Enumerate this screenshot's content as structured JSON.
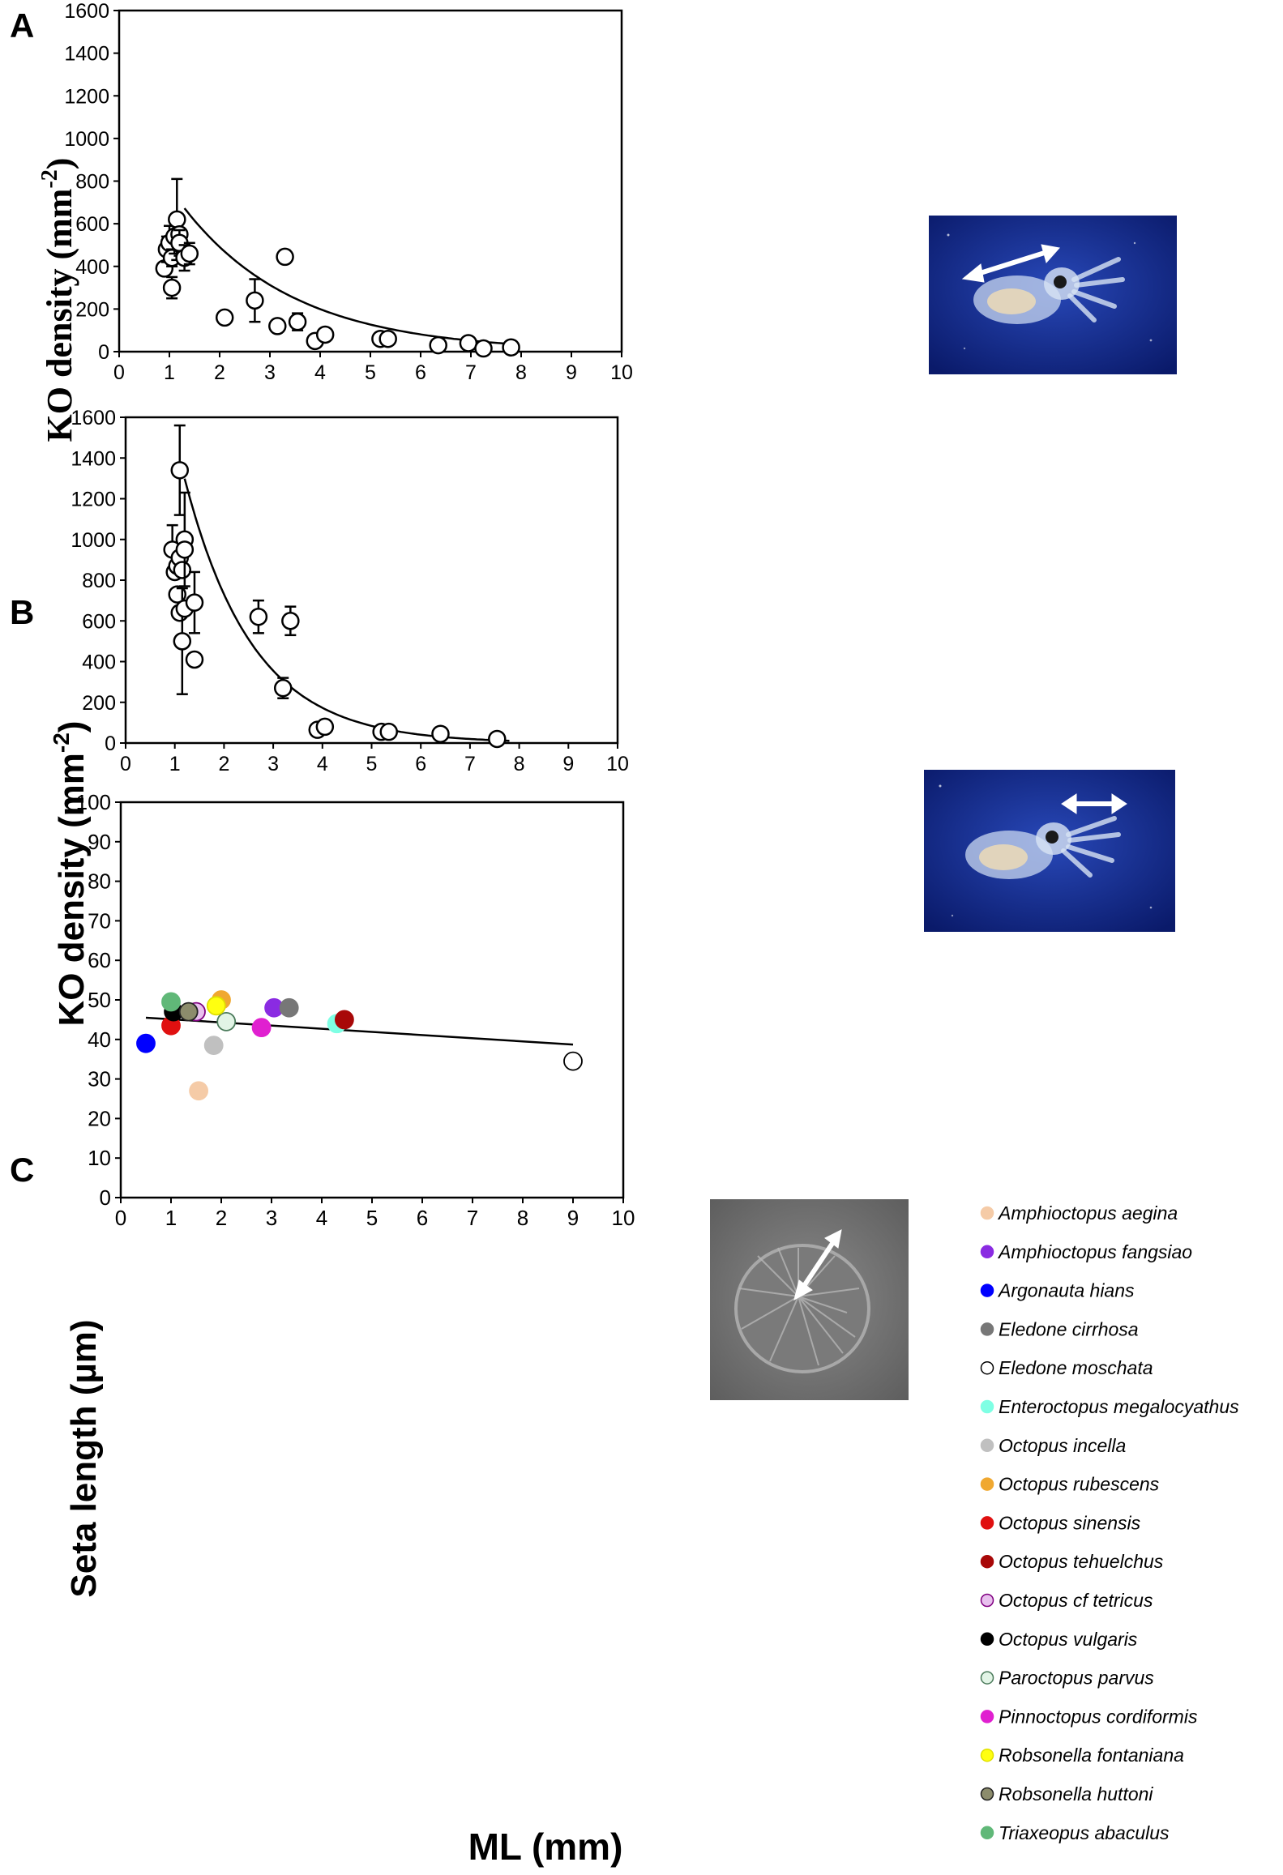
{
  "chart_data": [
    {
      "type": "scatter",
      "panel_label": "A",
      "xlabel": "",
      "ylabel": "KO density  (mm-2)",
      "ylabel_main": "KO density  (mm",
      "ylabel_sup": "-2",
      "ylabel_tail": ")",
      "xlim": [
        0,
        10
      ],
      "ylim": [
        0,
        1600
      ],
      "x_ticks": [
        "0",
        "1",
        "2",
        "3",
        "4",
        "5",
        "6",
        "7",
        "8",
        "9",
        "10"
      ],
      "y_ticks": [
        "0",
        "200",
        "400",
        "600",
        "800",
        "1000",
        "1200",
        "1400",
        "1600"
      ],
      "points": [
        {
          "x": 0.9,
          "y": 390,
          "err": 0
        },
        {
          "x": 0.95,
          "y": 480,
          "err": 60
        },
        {
          "x": 1.0,
          "y": 510,
          "err": 80
        },
        {
          "x": 1.05,
          "y": 440,
          "err": 40
        },
        {
          "x": 1.05,
          "y": 300,
          "err": 50
        },
        {
          "x": 1.1,
          "y": 540,
          "err": 80
        },
        {
          "x": 1.15,
          "y": 620,
          "err": 190
        },
        {
          "x": 1.2,
          "y": 550,
          "err": 0
        },
        {
          "x": 1.2,
          "y": 510,
          "err": 60
        },
        {
          "x": 1.3,
          "y": 440,
          "err": 60
        },
        {
          "x": 1.4,
          "y": 460,
          "err": 50
        },
        {
          "x": 2.1,
          "y": 160,
          "err": 0
        },
        {
          "x": 2.7,
          "y": 240,
          "err": 100
        },
        {
          "x": 3.15,
          "y": 120,
          "err": 0
        },
        {
          "x": 3.3,
          "y": 445,
          "err": 30
        },
        {
          "x": 3.55,
          "y": 140,
          "err": 40
        },
        {
          "x": 3.9,
          "y": 50,
          "err": 0
        },
        {
          "x": 4.1,
          "y": 80,
          "err": 0
        },
        {
          "x": 5.2,
          "y": 60,
          "err": 20
        },
        {
          "x": 5.35,
          "y": 60,
          "err": 0
        },
        {
          "x": 6.35,
          "y": 30,
          "err": 0
        },
        {
          "x": 6.95,
          "y": 40,
          "err": 0
        },
        {
          "x": 7.25,
          "y": 15,
          "err": 0
        },
        {
          "x": 7.8,
          "y": 20,
          "err": 0
        }
      ],
      "fit": {
        "type": "exponential",
        "x_range": [
          1.3,
          7.8
        ],
        "a": 770,
        "b": 0.45
      },
      "inset_description": "squid paralarva photo, arrow along mantle"
    },
    {
      "type": "scatter",
      "panel_label": "B",
      "xlabel": "",
      "ylabel": "KO density  (mm-2)",
      "ylabel_main": "KO density  (mm",
      "ylabel_sup": "-2",
      "ylabel_tail": ")",
      "xlim": [
        0,
        10
      ],
      "ylim": [
        0,
        1600
      ],
      "x_ticks": [
        "0",
        "1",
        "2",
        "3",
        "4",
        "5",
        "6",
        "7",
        "8",
        "9",
        "10"
      ],
      "y_ticks": [
        "0",
        "200",
        "400",
        "600",
        "800",
        "1000",
        "1200",
        "1400",
        "1600"
      ],
      "points": [
        {
          "x": 0.95,
          "y": 950,
          "err": 120
        },
        {
          "x": 1.0,
          "y": 840,
          "err": 0
        },
        {
          "x": 1.05,
          "y": 870,
          "err": 0
        },
        {
          "x": 1.05,
          "y": 730,
          "err": 0
        },
        {
          "x": 1.1,
          "y": 1340,
          "err": 220
        },
        {
          "x": 1.1,
          "y": 910,
          "err": 0
        },
        {
          "x": 1.1,
          "y": 640,
          "err": 0
        },
        {
          "x": 1.15,
          "y": 850,
          "err": 0
        },
        {
          "x": 1.15,
          "y": 500,
          "err": 260
        },
        {
          "x": 1.2,
          "y": 1000,
          "err": 230
        },
        {
          "x": 1.2,
          "y": 950,
          "err": 0
        },
        {
          "x": 1.2,
          "y": 660,
          "err": 0
        },
        {
          "x": 1.4,
          "y": 690,
          "err": 150
        },
        {
          "x": 1.4,
          "y": 410,
          "err": 0
        },
        {
          "x": 2.7,
          "y": 620,
          "err": 80
        },
        {
          "x": 3.2,
          "y": 270,
          "err": 50
        },
        {
          "x": 3.35,
          "y": 600,
          "err": 70
        },
        {
          "x": 3.9,
          "y": 65,
          "err": 0
        },
        {
          "x": 4.05,
          "y": 80,
          "err": 0
        },
        {
          "x": 5.2,
          "y": 55,
          "err": 0
        },
        {
          "x": 5.35,
          "y": 55,
          "err": 0
        },
        {
          "x": 6.4,
          "y": 45,
          "err": 0
        },
        {
          "x": 7.55,
          "y": 20,
          "err": 0
        }
      ],
      "fit": {
        "type": "exponential",
        "x_range": [
          1.2,
          7.8
        ],
        "a": 1500,
        "b": 0.72
      },
      "inset_description": "squid paralarva photo, arrow across arms"
    },
    {
      "type": "scatter",
      "panel_label": "C",
      "xlabel": "ML (mm)",
      "ylabel": "Seta length (µm)",
      "xlim": [
        0,
        10
      ],
      "ylim": [
        0,
        100
      ],
      "x_ticks": [
        "0",
        "1",
        "2",
        "3",
        "4",
        "5",
        "6",
        "7",
        "8",
        "9",
        "10"
      ],
      "y_ticks": [
        "0",
        "10",
        "20",
        "30",
        "40",
        "50",
        "60",
        "70",
        "80",
        "90",
        "100"
      ],
      "fit": {
        "type": "linear",
        "x": [
          0.5,
          9.0
        ],
        "y": [
          45.5,
          38.7
        ]
      },
      "points": [
        {
          "species": "Amphioctopus aegina",
          "x": 1.55,
          "y": 27
        },
        {
          "species": "Amphioctopus fangsiao",
          "x": 3.05,
          "y": 48
        },
        {
          "species": "Argonauta hians",
          "x": 0.5,
          "y": 39
        },
        {
          "species": "Eledone cirrhosa",
          "x": 3.35,
          "y": 48
        },
        {
          "species": "Eledone moschata",
          "x": 9.0,
          "y": 34.5
        },
        {
          "species": "Enteroctopus megalocyathus",
          "x": 4.3,
          "y": 44
        },
        {
          "species": "Octopus incella",
          "x": 1.85,
          "y": 38.5
        },
        {
          "species": "Octopus rubescens",
          "x": 2.0,
          "y": 50
        },
        {
          "species": "Octopus sinensis",
          "x": 1.0,
          "y": 43.5
        },
        {
          "species": "Octopus tehuelchus",
          "x": 4.45,
          "y": 45
        },
        {
          "species": "Octopus cf tetricus",
          "x": 1.5,
          "y": 47
        },
        {
          "species": "Octopus vulgaris",
          "x": 1.05,
          "y": 47
        },
        {
          "species": "Paroctopus parvus",
          "x": 2.1,
          "y": 44.5
        },
        {
          "species": "Pinnoctopus cordiformis",
          "x": 2.8,
          "y": 43
        },
        {
          "species": "Robsonella fontaniana",
          "x": 1.9,
          "y": 48.5
        },
        {
          "species": "Robsonella huttoni",
          "x": 1.35,
          "y": 47
        },
        {
          "species": "Triaxeopus abaculus",
          "x": 1.0,
          "y": 49.5
        }
      ],
      "legend": [
        {
          "label": "Amphioctopus aegina",
          "color": "#f5cba7",
          "edge": "#f5cba7"
        },
        {
          "label": "Amphioctopus fangsiao",
          "color": "#8a2be2",
          "edge": "#8a2be2"
        },
        {
          "label": "Argonauta hians",
          "color": "#0000ff",
          "edge": "#0000ff"
        },
        {
          "label": "Eledone cirrhosa",
          "color": "#777777",
          "edge": "#777777"
        },
        {
          "label": "Eledone moschata",
          "color": "#ffffff",
          "edge": "#000000"
        },
        {
          "label": "Enteroctopus megalocyathus",
          "color": "#7fffe4",
          "edge": "#7fffe4"
        },
        {
          "label": "Octopus incella",
          "color": "#c0c0c0",
          "edge": "#c0c0c0"
        },
        {
          "label": "Octopus rubescens",
          "color": "#f0a830",
          "edge": "#f0a830"
        },
        {
          "label": "Octopus sinensis",
          "color": "#e01010",
          "edge": "#e01010"
        },
        {
          "label": "Octopus tehuelchus",
          "color": "#a80808",
          "edge": "#a80808"
        },
        {
          "label": "Octopus cf tetricus",
          "color": "#e8c0ee",
          "edge": "#800080"
        },
        {
          "label": "Octopus vulgaris",
          "color": "#000000",
          "edge": "#000000"
        },
        {
          "label": "Paroctopus parvus",
          "color": "#e2f4e6",
          "edge": "#4a7a5a"
        },
        {
          "label": "Pinnoctopus cordiformis",
          "color": "#e020d0",
          "edge": "#e020d0"
        },
        {
          "label": "Robsonella fontaniana",
          "color": "#ffff10",
          "edge": "#e0e000"
        },
        {
          "label": "Robsonella huttoni",
          "color": "#8c8c6c",
          "edge": "#222222"
        },
        {
          "label": "Triaxeopus abaculus",
          "color": "#60b878",
          "edge": "#60b878"
        }
      ],
      "inset_description": "SEM image of Koelliker organ, arrow indicating seta length"
    }
  ]
}
